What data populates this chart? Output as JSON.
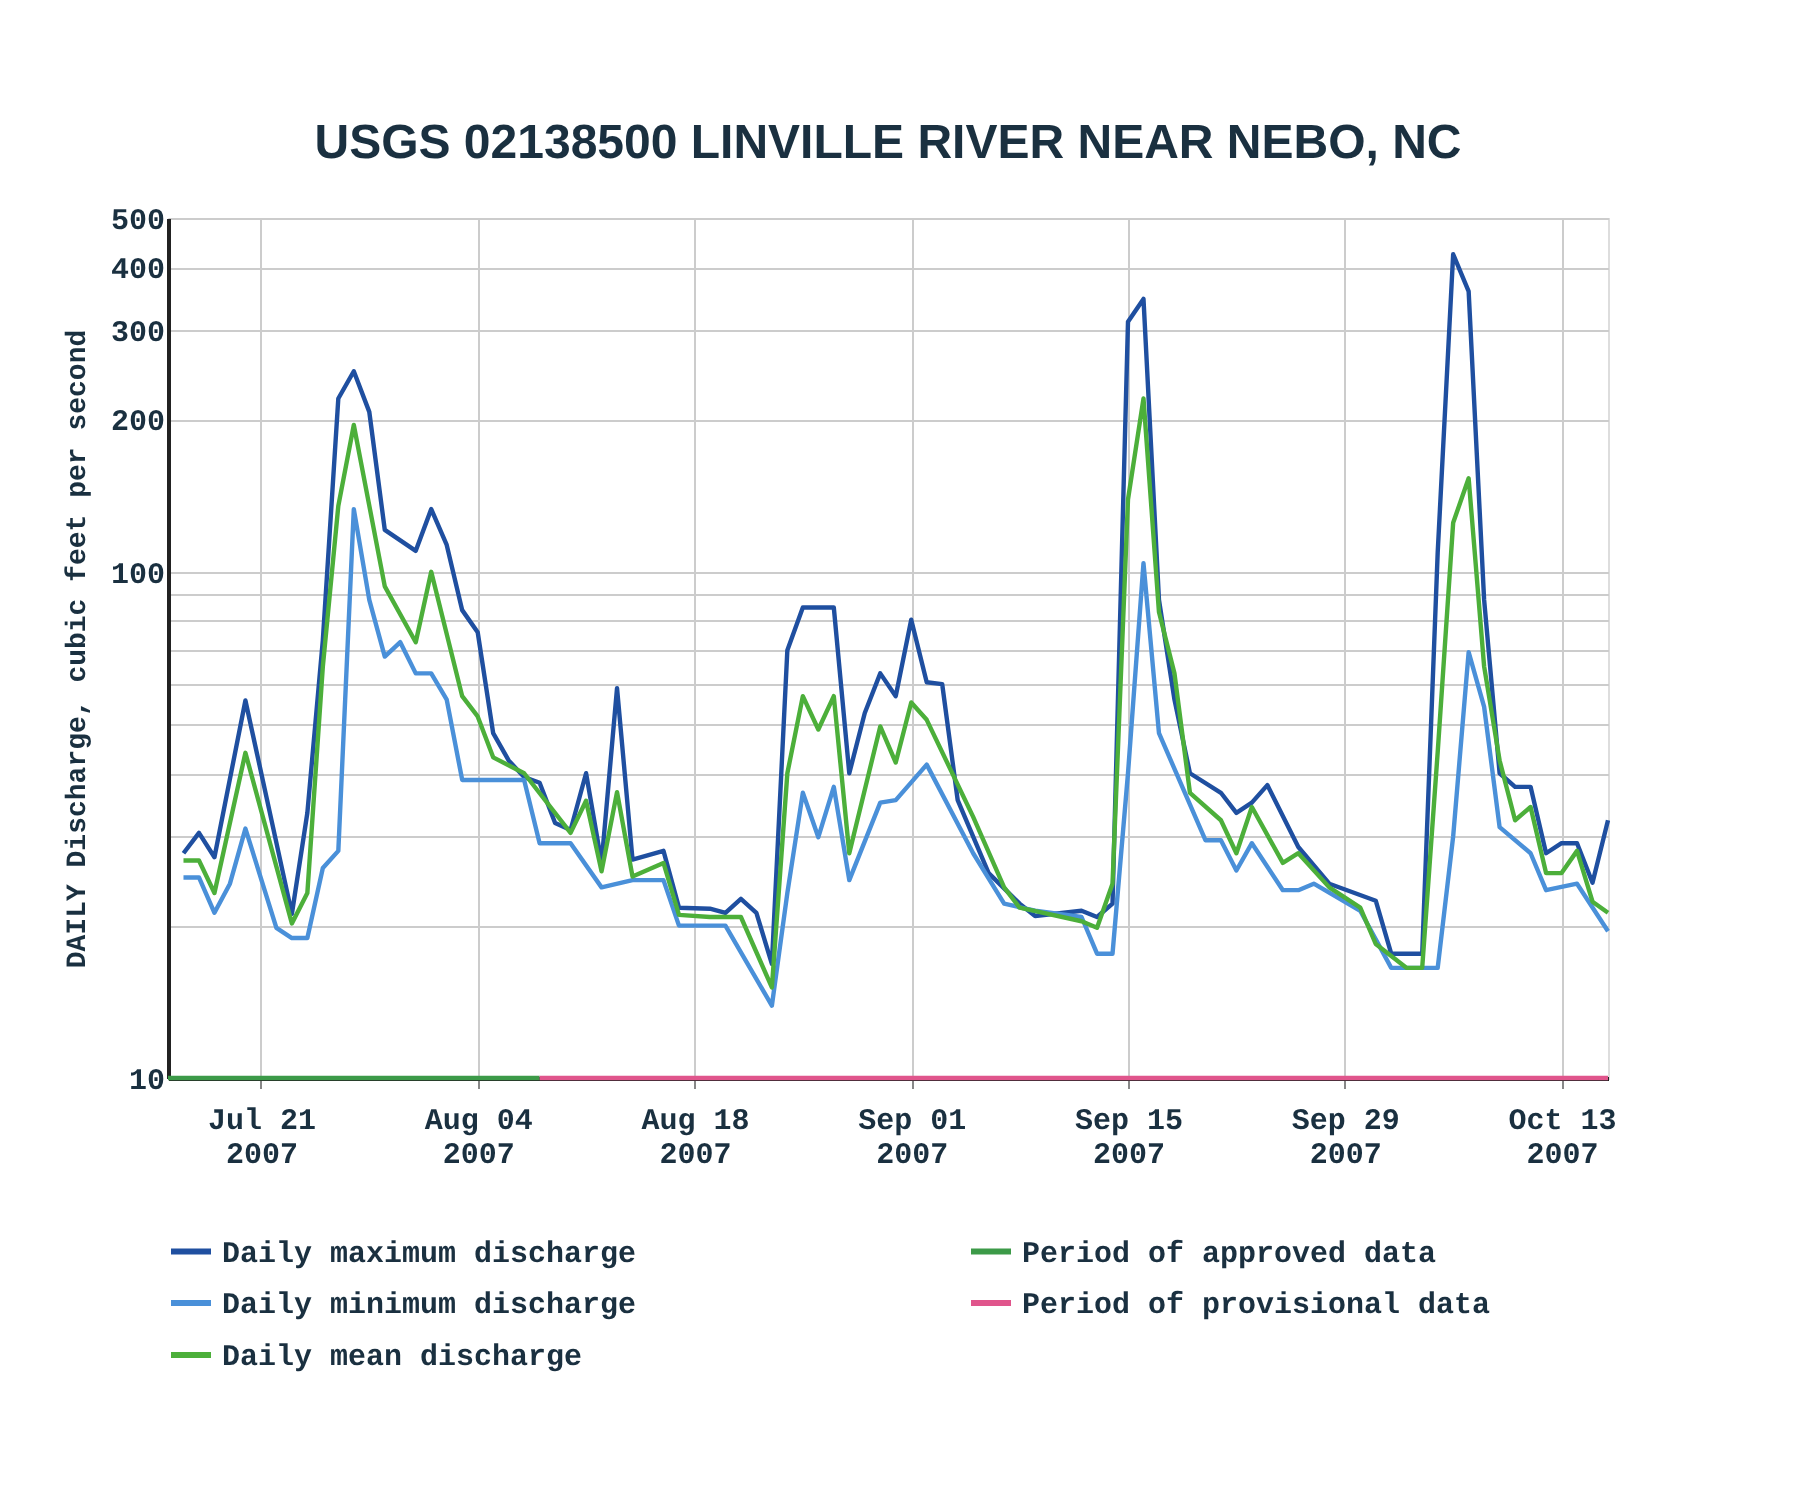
{
  "chart_data": {
    "type": "line",
    "title": "USGS 02138500 LINVILLE RIVER NEAR NEBO, NC",
    "ylabel": "DAILY Discharge, cubic feet per second",
    "log": "y",
    "grid": true,
    "legend": "bottom",
    "xlim": [
      "2007-07-15",
      "2007-10-16"
    ],
    "ylim": [
      10,
      500
    ],
    "xticks": [
      {
        "value": "2007-07-21",
        "label": "Jul 21\n2007"
      },
      {
        "value": "2007-08-04",
        "label": "Aug 04\n2007"
      },
      {
        "value": "2007-08-18",
        "label": "Aug 18\n2007"
      },
      {
        "value": "2007-09-01",
        "label": "Sep 01\n2007"
      },
      {
        "value": "2007-09-15",
        "label": "Sep 15\n2007"
      },
      {
        "value": "2007-09-29",
        "label": "Sep 29\n2007"
      },
      {
        "value": "2007-10-13",
        "label": "Oct 13\n2007"
      }
    ],
    "yticks": [
      10,
      {
        "value": 20,
        "label": null
      },
      {
        "value": 30,
        "label": null
      },
      {
        "value": 40,
        "label": null
      },
      {
        "value": 50,
        "label": null
      },
      {
        "value": 60,
        "label": null
      },
      {
        "value": 70,
        "label": null
      },
      {
        "value": 80,
        "label": null
      },
      {
        "value": 90,
        "label": null
      },
      100,
      200,
      300,
      400,
      500
    ],
    "series": [
      {
        "name": "Daily maximum discharge",
        "color": "#1f4fa0",
        "x": [
          "2007-07-16",
          "2007-07-17",
          "2007-07-18",
          "2007-07-20",
          "2007-07-23",
          "2007-07-24",
          "2007-07-25",
          "2007-07-26",
          "2007-07-27",
          "2007-07-28",
          "2007-07-29",
          "2007-07-31",
          "2007-08-01",
          "2007-08-02",
          "2007-08-03",
          "2007-08-04",
          "2007-08-05",
          "2007-08-06",
          "2007-08-07",
          "2007-08-08",
          "2007-08-09",
          "2007-08-10",
          "2007-08-11",
          "2007-08-12",
          "2007-08-13",
          "2007-08-14",
          "2007-08-16",
          "2007-08-17",
          "2007-08-19",
          "2007-08-20",
          "2007-08-21",
          "2007-08-22",
          "2007-08-23",
          "2007-08-24",
          "2007-08-25",
          "2007-08-27",
          "2007-08-28",
          "2007-08-29",
          "2007-08-30",
          "2007-08-31",
          "2007-09-01",
          "2007-09-02",
          "2007-09-03",
          "2007-09-04",
          "2007-09-06",
          "2007-09-08",
          "2007-09-09",
          "2007-09-12",
          "2007-09-13",
          "2007-09-14",
          "2007-09-15",
          "2007-09-16",
          "2007-09-17",
          "2007-09-18",
          "2007-09-19",
          "2007-09-21",
          "2007-09-22",
          "2007-09-23",
          "2007-09-24",
          "2007-09-26",
          "2007-09-28",
          "2007-10-01",
          "2007-10-02",
          "2007-10-04",
          "2007-10-05",
          "2007-10-06",
          "2007-10-07",
          "2007-10-08",
          "2007-10-09",
          "2007-10-10",
          "2007-10-11",
          "2007-10-12",
          "2007-10-13",
          "2007-10-14",
          "2007-10-15",
          "2007-10-16"
        ],
        "values": [
          27.8,
          30.5,
          27.3,
          55.7,
          21.1,
          33.4,
          73.3,
          220,
          249,
          207,
          121,
          110,
          133,
          113,
          84,
          76,
          48,
          42.4,
          39.3,
          38.3,
          31.9,
          30.9,
          40,
          26.6,
          58.9,
          27,
          28.1,
          21.7,
          21.6,
          21.2,
          22.6,
          21.2,
          16.8,
          70,
          85,
          85,
          40,
          52.6,
          63,
          56.8,
          80.4,
          60.5,
          60,
          35.4,
          25.4,
          22.1,
          20.9,
          21.4,
          20.8,
          22.1,
          312,
          346,
          88,
          55.9,
          40,
          36.6,
          33.4,
          35,
          37.9,
          28.6,
          24.2,
          22.4,
          17.6,
          17.6,
          109,
          424,
          358,
          88,
          40,
          37.6,
          37.6,
          27.8,
          29.1,
          29.1,
          24.3,
          32.3
        ]
      },
      {
        "name": "Period of approved data",
        "color": "#3c9a48",
        "x": [
          "2007-07-15",
          "2007-08-08"
        ],
        "values": [
          10,
          10
        ]
      },
      {
        "name": "Daily minimum discharge",
        "color": "#4a90d9",
        "x": [
          "2007-07-16",
          "2007-07-17",
          "2007-07-18",
          "2007-07-19",
          "2007-07-20",
          "2007-07-22",
          "2007-07-23",
          "2007-07-24",
          "2007-07-25",
          "2007-07-26",
          "2007-07-27",
          "2007-07-28",
          "2007-07-29",
          "2007-07-30",
          "2007-07-31",
          "2007-08-01",
          "2007-08-02",
          "2007-08-03",
          "2007-08-07",
          "2007-08-08",
          "2007-08-10",
          "2007-08-12",
          "2007-08-14",
          "2007-08-16",
          "2007-08-17",
          "2007-08-20",
          "2007-08-23",
          "2007-08-24",
          "2007-08-25",
          "2007-08-26",
          "2007-08-27",
          "2007-08-28",
          "2007-08-30",
          "2007-08-31",
          "2007-09-02",
          "2007-09-05",
          "2007-09-07",
          "2007-09-09",
          "2007-09-12",
          "2007-09-13",
          "2007-09-14",
          "2007-09-15",
          "2007-09-16",
          "2007-09-17",
          "2007-09-20",
          "2007-09-21",
          "2007-09-22",
          "2007-09-23",
          "2007-09-25",
          "2007-09-26",
          "2007-09-27",
          "2007-09-30",
          "2007-10-02",
          "2007-10-05",
          "2007-10-06",
          "2007-10-07",
          "2007-10-08",
          "2007-10-09",
          "2007-10-11",
          "2007-10-12",
          "2007-10-14",
          "2007-10-16"
        ],
        "values": [
          24.9,
          24.9,
          21.2,
          24.2,
          31.1,
          19.8,
          18.9,
          18.9,
          26,
          28.1,
          133,
          88,
          68,
          72.6,
          63,
          63,
          55.9,
          38.8,
          38.8,
          29.1,
          29.1,
          23.8,
          24.6,
          24.6,
          20,
          20,
          13.9,
          23.2,
          36.6,
          29.9,
          37.6,
          24.6,
          35,
          35.4,
          41.6,
          27.8,
          22.1,
          21.4,
          20.8,
          17.6,
          17.6,
          40,
          104,
          48,
          29.5,
          29.5,
          25.7,
          29.1,
          23.5,
          23.5,
          24.2,
          21.4,
          16.5,
          16.5,
          30,
          69.4,
          54.1,
          31.3,
          27.8,
          23.5,
          24.2,
          19.5
        ]
      },
      {
        "name": "Period of provisional data",
        "color": "#e0558c",
        "x": [
          "2007-08-08",
          "2007-10-16"
        ],
        "values": [
          10,
          10
        ]
      },
      {
        "name": "Daily mean discharge",
        "color": "#4caf3a",
        "x": [
          "2007-07-16",
          "2007-07-17",
          "2007-07-18",
          "2007-07-20",
          "2007-07-23",
          "2007-07-24",
          "2007-07-25",
          "2007-07-26",
          "2007-07-27",
          "2007-07-29",
          "2007-07-31",
          "2007-08-01",
          "2007-08-03",
          "2007-08-04",
          "2007-08-05",
          "2007-08-07",
          "2007-08-10",
          "2007-08-11",
          "2007-08-12",
          "2007-08-13",
          "2007-08-14",
          "2007-08-16",
          "2007-08-17",
          "2007-08-19",
          "2007-08-21",
          "2007-08-23",
          "2007-08-24",
          "2007-08-25",
          "2007-08-26",
          "2007-08-27",
          "2007-08-28",
          "2007-08-30",
          "2007-08-31",
          "2007-09-01",
          "2007-09-02",
          "2007-09-05",
          "2007-09-07",
          "2007-09-08",
          "2007-09-12",
          "2007-09-13",
          "2007-09-14",
          "2007-09-15",
          "2007-09-16",
          "2007-09-17",
          "2007-09-18",
          "2007-09-19",
          "2007-09-21",
          "2007-09-22",
          "2007-09-23",
          "2007-09-25",
          "2007-09-26",
          "2007-09-28",
          "2007-09-30",
          "2007-10-01",
          "2007-10-03",
          "2007-10-04",
          "2007-10-05",
          "2007-10-06",
          "2007-10-07",
          "2007-10-08",
          "2007-10-09",
          "2007-10-10",
          "2007-10-11",
          "2007-10-12",
          "2007-10-13",
          "2007-10-14",
          "2007-10-15",
          "2007-10-16"
        ],
        "values": [
          26.9,
          26.9,
          23.2,
          43.9,
          20.2,
          23.2,
          65,
          135,
          195,
          93.6,
          72.6,
          100,
          56.8,
          51.8,
          43,
          40,
          30.5,
          35.3,
          25.6,
          36.7,
          25,
          26.6,
          21,
          20.8,
          20.8,
          15.1,
          40,
          56.8,
          48.8,
          56.8,
          27.8,
          49.5,
          42,
          55.2,
          51,
          32.8,
          23.8,
          21.7,
          20.4,
          19.8,
          24.2,
          139,
          220,
          83.3,
          63,
          36.6,
          32.3,
          27.8,
          34.3,
          26.6,
          27.8,
          23.8,
          21.7,
          18.4,
          16.5,
          16.5,
          44,
          125,
          153,
          65,
          42.4,
          32.3,
          34.3,
          25.4,
          25.4,
          28.1,
          22.3,
          21.2
        ]
      }
    ]
  }
}
